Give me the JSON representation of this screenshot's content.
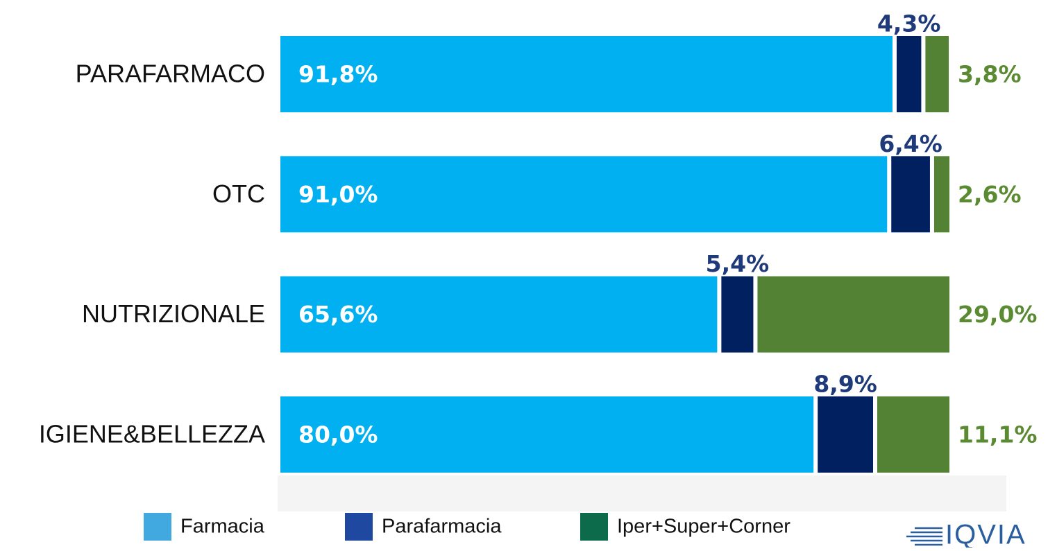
{
  "chart_data": {
    "type": "stacked_bar_horizontal",
    "categories": [
      "PARAFARMACO",
      "OTC",
      "NUTRIZIONALE",
      "IGIENE&BELLEZZA"
    ],
    "xlim": [
      0,
      100
    ],
    "series": [
      {
        "name": "Farmacia",
        "color": "#00b0f0",
        "legend_color": "#41a9e0",
        "label_color": "#ffffff",
        "values": [
          91.8,
          91.0,
          65.6,
          80.0
        ],
        "value_labels": [
          "91,8%",
          "91,0%",
          "65,6%",
          "80,0%"
        ]
      },
      {
        "name": "Parafarmacia",
        "color": "#002060",
        "legend_color": "#1f48a0",
        "label_color": "#1f3a7a",
        "values": [
          4.3,
          6.4,
          5.4,
          8.9
        ],
        "value_labels": [
          "4,3%",
          "6,4%",
          "5,4%",
          "8,9%"
        ]
      },
      {
        "name": "Iper+Super+Corner",
        "color": "#548235",
        "legend_color": "#0b6b4a",
        "label_color": "#5a8a32",
        "values": [
          3.8,
          2.6,
          29.0,
          11.1
        ],
        "value_labels": [
          "3,8%",
          "2,6%",
          "29,0%",
          "11,1%"
        ]
      }
    ],
    "logo": "IQVIA"
  }
}
